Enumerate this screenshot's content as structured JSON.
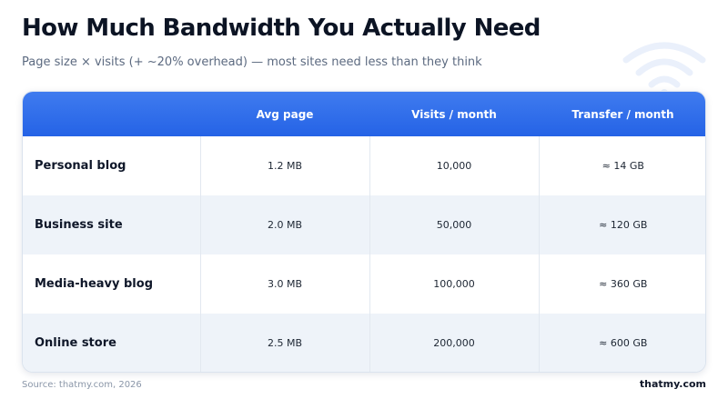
{
  "header": {
    "title": "How Much Bandwidth You Actually Need",
    "subtitle": "Page size × visits (+ ~20% overhead) — most sites need less than they think"
  },
  "decor": {
    "icon": "wifi-icon",
    "icon_color": "#eaf0fb"
  },
  "table": {
    "columns": [
      "",
      "Avg page",
      "Visits / month",
      "Transfer / month"
    ],
    "rows": [
      {
        "label": "Personal blog",
        "avg_page": "1.2 MB",
        "visits": "10,000",
        "transfer": "≈ 14 GB"
      },
      {
        "label": "Business site",
        "avg_page": "2.0 MB",
        "visits": "50,000",
        "transfer": "≈ 120 GB"
      },
      {
        "label": "Media-heavy blog",
        "avg_page": "3.0 MB",
        "visits": "100,000",
        "transfer": "≈ 360 GB"
      },
      {
        "label": "Online store",
        "avg_page": "2.5 MB",
        "visits": "200,000",
        "transfer": "≈ 600 GB"
      }
    ]
  },
  "colors": {
    "header_bg": "#2f6fea",
    "alt_row": "#eef3f9"
  },
  "footer": {
    "source": "Source: thatmy.com, 2026",
    "brand": "thatmy.com"
  }
}
